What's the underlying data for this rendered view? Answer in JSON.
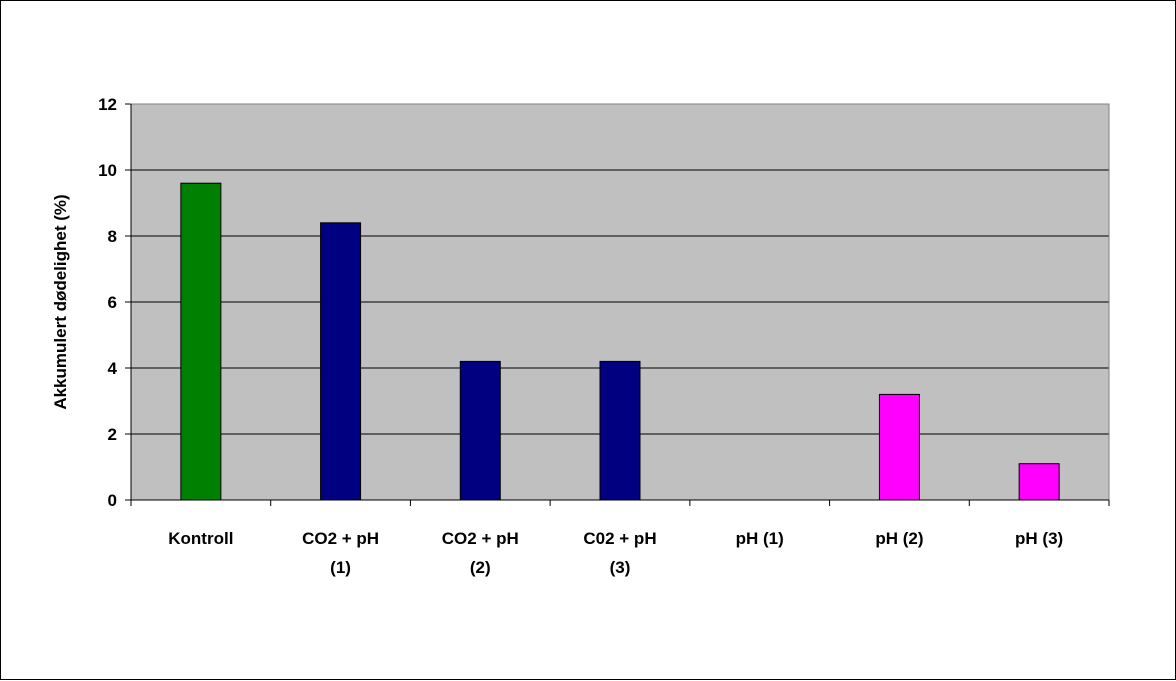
{
  "chart_data": {
    "type": "bar",
    "title": "",
    "xlabel": "",
    "ylabel": "Akkumulert dødelighet (%)",
    "ylim": [
      0,
      12
    ],
    "yticks": [
      0,
      2,
      4,
      6,
      8,
      10,
      12
    ],
    "grid": true,
    "legend": "none",
    "plot_background": "#C0C0C0",
    "categories": [
      [
        "Kontroll"
      ],
      [
        "CO2 + pH",
        "(1)"
      ],
      [
        "CO2 + pH",
        "(2)"
      ],
      [
        "C02 + pH",
        "(3)"
      ],
      [
        "pH (1)"
      ],
      [
        "pH (2)"
      ],
      [
        "pH (3)"
      ]
    ],
    "values": [
      9.6,
      8.4,
      4.2,
      4.2,
      0,
      3.2,
      1.1
    ],
    "colors": [
      "#008000",
      "#000080",
      "#000080",
      "#000080",
      "#FF00FF",
      "#FF00FF",
      "#FF00FF"
    ]
  }
}
